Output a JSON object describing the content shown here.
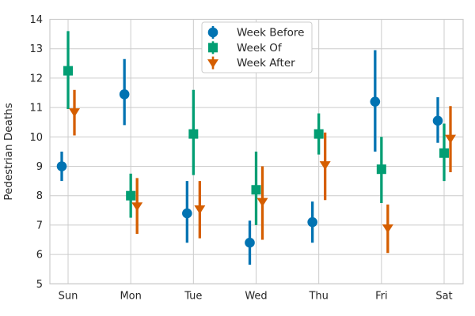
{
  "figure": {
    "background": "#ffffff",
    "text_color": "#262626",
    "grid_color": "#cccccc",
    "legend_border_color": "#cccccc"
  },
  "chart_data": {
    "type": "scatter",
    "subtype": "pointplot-with-errorbars",
    "title": "",
    "xlabel": "",
    "ylabel": "Pedestrian Deaths",
    "categories": [
      "Sun",
      "Mon",
      "Tue",
      "Wed",
      "Thu",
      "Fri",
      "Sat"
    ],
    "ylim": [
      5,
      14
    ],
    "yticks": [
      5,
      6,
      7,
      8,
      9,
      10,
      11,
      12,
      13,
      14
    ],
    "grid": true,
    "legend_position": "upper center",
    "legend_labels": [
      "Week Before",
      "Week Of",
      "Week After"
    ],
    "series": [
      {
        "name": "Week Before",
        "marker": "circle",
        "color": "#0173b2",
        "values": [
          9.0,
          11.45,
          7.4,
          6.4,
          7.1,
          11.2,
          10.55
        ],
        "err_low": [
          8.5,
          10.4,
          6.4,
          5.65,
          6.4,
          9.5,
          9.8
        ],
        "err_high": [
          9.5,
          12.65,
          8.5,
          7.15,
          7.8,
          12.95,
          11.35
        ]
      },
      {
        "name": "Week Of",
        "marker": "square",
        "color": "#029e73",
        "values": [
          12.25,
          8.0,
          10.1,
          8.2,
          10.1,
          8.9,
          9.45
        ],
        "err_low": [
          10.95,
          7.25,
          8.7,
          7.0,
          9.4,
          7.75,
          8.5
        ],
        "err_high": [
          13.6,
          8.75,
          11.6,
          9.5,
          10.8,
          10.0,
          10.45
        ]
      },
      {
        "name": "Week After",
        "marker": "triangle-down",
        "color": "#d55e00",
        "values": [
          10.85,
          7.65,
          7.55,
          7.8,
          9.05,
          6.9,
          9.95
        ],
        "err_low": [
          10.05,
          6.7,
          6.55,
          6.5,
          7.85,
          6.05,
          8.8
        ],
        "err_high": [
          11.6,
          8.6,
          8.5,
          9.0,
          10.15,
          7.7,
          11.05
        ]
      }
    ]
  }
}
